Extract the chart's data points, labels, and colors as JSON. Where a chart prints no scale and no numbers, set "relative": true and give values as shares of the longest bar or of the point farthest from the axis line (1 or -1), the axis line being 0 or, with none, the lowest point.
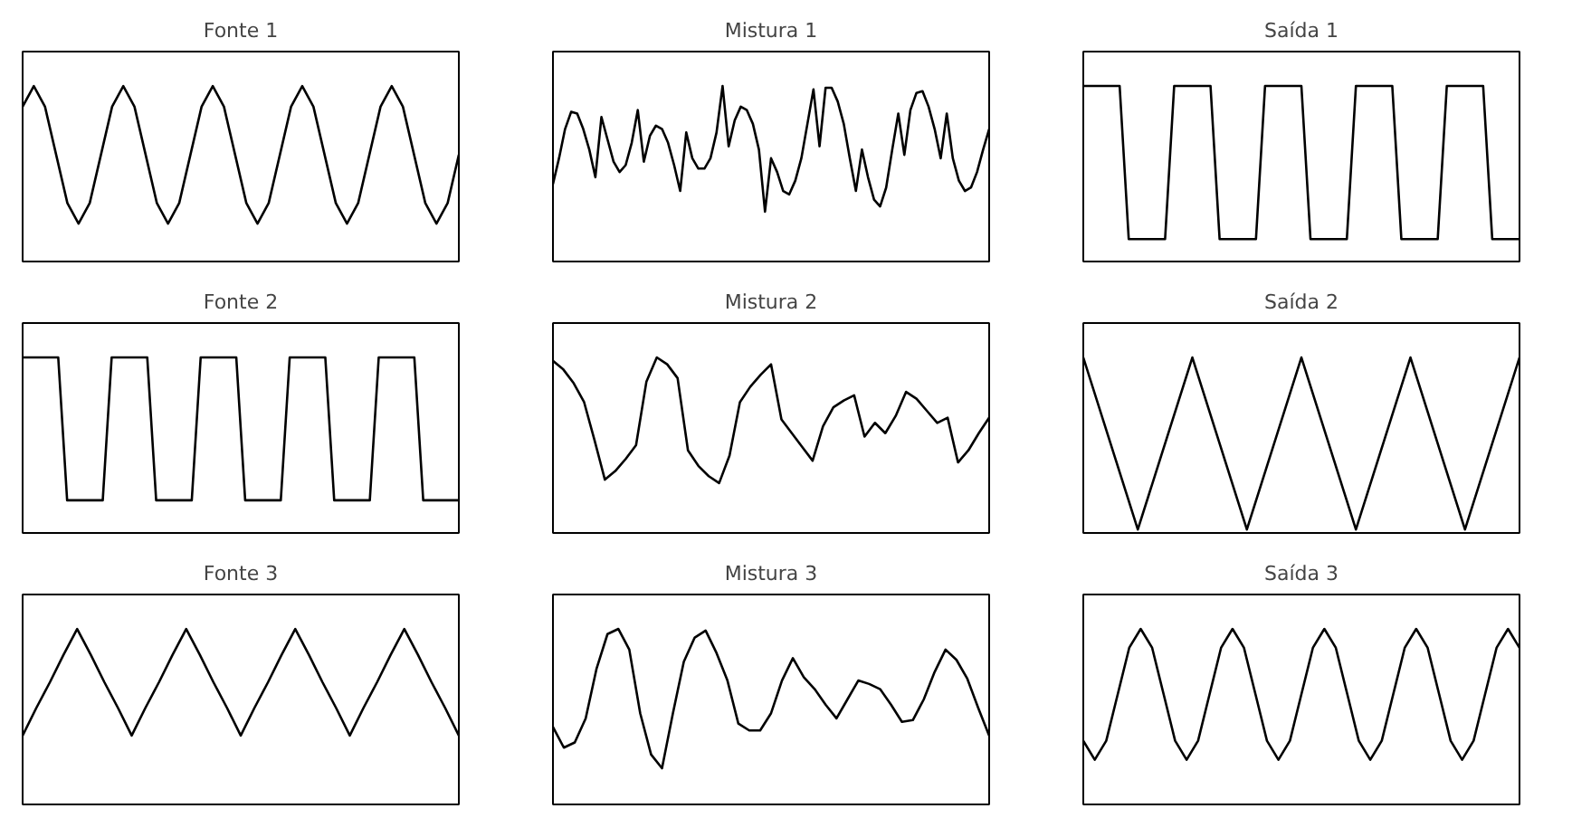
{
  "chart_data": [
    {
      "type": "line",
      "title": "Fonte 1",
      "relative": true,
      "tick_labels": false,
      "categories": [
        null,
        null,
        null,
        null,
        null,
        null,
        null,
        null,
        null,
        null,
        null,
        null,
        null,
        null,
        null,
        null,
        null,
        null,
        null,
        null,
        null,
        null,
        null,
        null,
        null,
        null,
        null,
        null,
        null,
        null,
        null,
        null,
        null,
        null,
        null,
        null,
        null,
        null,
        null,
        null
      ],
      "series": [
        {
          "color": "#000000",
          "values": [
            0.88,
            1,
            0.88,
            0.6,
            0.32,
            0.2,
            0.32,
            0.6,
            0.88,
            1,
            0.88,
            0.6,
            0.32,
            0.2,
            0.32,
            0.6,
            0.88,
            1,
            0.88,
            0.6,
            0.32,
            0.2,
            0.32,
            0.6,
            0.88,
            1,
            0.88,
            0.6,
            0.32,
            0.2,
            0.32,
            0.6,
            0.88,
            1,
            0.88,
            0.6,
            0.32,
            0.2,
            0.32,
            0.6
          ]
        }
      ]
    },
    {
      "type": "line",
      "title": "Mistura 1",
      "relative": true,
      "tick_labels": false,
      "categories": [
        null,
        null,
        null,
        null,
        null,
        null,
        null,
        null,
        null,
        null,
        null,
        null,
        null,
        null,
        null,
        null,
        null,
        null,
        null,
        null,
        null,
        null,
        null,
        null,
        null,
        null,
        null,
        null,
        null,
        null,
        null,
        null,
        null,
        null,
        null,
        null,
        null,
        null,
        null,
        null,
        null,
        null,
        null,
        null,
        null,
        null,
        null,
        null,
        null,
        null,
        null,
        null,
        null,
        null,
        null,
        null,
        null,
        null,
        null,
        null,
        null,
        null,
        null,
        null,
        null,
        null,
        null,
        null,
        null,
        null,
        null,
        null,
        null
      ],
      "series": [
        {
          "color": "#000000",
          "values": [
            0.43,
            0.58,
            0.75,
            0.85,
            0.84,
            0.75,
            0.63,
            0.47,
            0.82,
            0.69,
            0.56,
            0.5,
            0.54,
            0.67,
            0.86,
            0.56,
            0.71,
            0.77,
            0.75,
            0.67,
            0.54,
            0.39,
            0.73,
            0.58,
            0.52,
            0.52,
            0.58,
            0.73,
            1,
            0.65,
            0.8,
            0.88,
            0.86,
            0.78,
            0.63,
            0.27,
            0.58,
            0.5,
            0.39,
            0.37,
            0.45,
            0.58,
            0.78,
            0.98,
            0.65,
            0.99,
            0.99,
            0.91,
            0.78,
            0.58,
            0.39,
            0.63,
            0.47,
            0.34,
            0.3,
            0.41,
            0.63,
            0.84,
            0.6,
            0.86,
            0.96,
            0.97,
            0.88,
            0.75,
            0.58,
            0.84,
            0.58,
            0.45,
            0.39,
            0.41,
            0.5,
            0.63,
            0.75
          ]
        }
      ]
    },
    {
      "type": "line",
      "title": "Saída 1",
      "relative": true,
      "tick_labels": false,
      "categories": [
        null,
        null,
        null,
        null,
        null,
        null,
        null,
        null,
        null,
        null,
        null,
        null,
        null,
        null,
        null,
        null,
        null,
        null,
        null,
        null,
        null,
        null,
        null,
        null,
        null,
        null,
        null,
        null,
        null,
        null,
        null,
        null,
        null,
        null,
        null,
        null,
        null,
        null,
        null,
        null,
        null,
        null,
        null,
        null,
        null,
        null,
        null,
        null,
        null
      ],
      "series": [
        {
          "color": "#000000",
          "values": [
            1,
            1,
            1,
            1,
            1,
            0.11,
            0.11,
            0.11,
            0.11,
            0.11,
            1,
            1,
            1,
            1,
            1,
            0.11,
            0.11,
            0.11,
            0.11,
            0.11,
            1,
            1,
            1,
            1,
            1,
            0.11,
            0.11,
            0.11,
            0.11,
            0.11,
            1,
            1,
            1,
            1,
            1,
            0.11,
            0.11,
            0.11,
            0.11,
            0.11,
            1,
            1,
            1,
            1,
            1,
            0.11,
            0.11,
            0.11,
            0.11
          ]
        }
      ]
    },
    {
      "type": "line",
      "title": "Fonte 2",
      "relative": true,
      "tick_labels": false,
      "categories": [
        null,
        null,
        null,
        null,
        null,
        null,
        null,
        null,
        null,
        null,
        null,
        null,
        null,
        null,
        null,
        null,
        null,
        null,
        null,
        null,
        null,
        null,
        null,
        null,
        null,
        null,
        null,
        null,
        null,
        null,
        null,
        null,
        null,
        null,
        null,
        null,
        null,
        null,
        null,
        null,
        null,
        null,
        null,
        null,
        null,
        null,
        null,
        null,
        null,
        null
      ],
      "series": [
        {
          "color": "#000000",
          "values": [
            1,
            1,
            1,
            1,
            1,
            0.17,
            0.17,
            0.17,
            0.17,
            0.17,
            1,
            1,
            1,
            1,
            1,
            0.17,
            0.17,
            0.17,
            0.17,
            0.17,
            1,
            1,
            1,
            1,
            1,
            0.17,
            0.17,
            0.17,
            0.17,
            0.17,
            1,
            1,
            1,
            1,
            1,
            0.17,
            0.17,
            0.17,
            0.17,
            0.17,
            1,
            1,
            1,
            1,
            1,
            0.17,
            0.17,
            0.17,
            0.17,
            0.17
          ]
        }
      ]
    },
    {
      "type": "line",
      "title": "Mistura 2",
      "relative": true,
      "tick_labels": false,
      "categories": [
        null,
        null,
        null,
        null,
        null,
        null,
        null,
        null,
        null,
        null,
        null,
        null,
        null,
        null,
        null,
        null,
        null,
        null,
        null,
        null,
        null,
        null,
        null,
        null,
        null,
        null,
        null,
        null,
        null,
        null,
        null,
        null,
        null,
        null,
        null,
        null,
        null,
        null,
        null,
        null,
        null,
        null,
        null
      ],
      "series": [
        {
          "color": "#000000",
          "values": [
            0.98,
            0.93,
            0.85,
            0.74,
            0.52,
            0.29,
            0.34,
            0.41,
            0.49,
            0.86,
            1,
            0.96,
            0.88,
            0.46,
            0.37,
            0.31,
            0.27,
            0.43,
            0.74,
            0.83,
            0.9,
            0.96,
            0.64,
            0.56,
            0.48,
            0.4,
            0.6,
            0.71,
            0.75,
            0.78,
            0.54,
            0.62,
            0.56,
            0.66,
            0.8,
            0.76,
            0.69,
            0.62,
            0.65,
            0.39,
            0.46,
            0.56,
            0.65
          ]
        }
      ]
    },
    {
      "type": "line",
      "title": "Saída 2",
      "relative": true,
      "tick_labels": false,
      "categories": [
        null,
        null,
        null,
        null,
        null,
        null,
        null,
        null,
        null,
        null,
        null,
        null,
        null,
        null,
        null,
        null,
        null
      ],
      "series": [
        {
          "color": "#000000",
          "values": [
            1,
            0.5,
            0,
            0.5,
            1,
            0.5,
            0,
            0.5,
            1,
            0.5,
            0,
            0.5,
            1,
            0.5,
            0,
            0.5,
            1
          ]
        }
      ]
    },
    {
      "type": "line",
      "title": "Fonte 3",
      "relative": true,
      "tick_labels": false,
      "categories": [
        null,
        null,
        null,
        null,
        null,
        null,
        null,
        null,
        null,
        null,
        null,
        null,
        null,
        null,
        null,
        null,
        null,
        null,
        null,
        null,
        null,
        null,
        null,
        null,
        null,
        null,
        null,
        null,
        null,
        null,
        null,
        null,
        null
      ],
      "series": [
        {
          "color": "#000000",
          "values": [
            0.38,
            0.54,
            0.69,
            0.85,
            1,
            0.85,
            0.69,
            0.54,
            0.38,
            0.54,
            0.69,
            0.85,
            1,
            0.85,
            0.69,
            0.54,
            0.38,
            0.54,
            0.69,
            0.85,
            1,
            0.85,
            0.69,
            0.54,
            0.38,
            0.54,
            0.69,
            0.85,
            1,
            0.85,
            0.69,
            0.54,
            0.38
          ]
        }
      ]
    },
    {
      "type": "line",
      "title": "Mistura 3",
      "relative": true,
      "tick_labels": false,
      "categories": [
        null,
        null,
        null,
        null,
        null,
        null,
        null,
        null,
        null,
        null,
        null,
        null,
        null,
        null,
        null,
        null,
        null,
        null,
        null,
        null,
        null,
        null,
        null,
        null,
        null,
        null,
        null,
        null,
        null,
        null,
        null,
        null,
        null,
        null,
        null,
        null,
        null,
        null,
        null,
        null,
        null
      ],
      "series": [
        {
          "color": "#000000",
          "values": [
            0.43,
            0.31,
            0.34,
            0.48,
            0.77,
            0.97,
            1,
            0.88,
            0.51,
            0.27,
            0.19,
            0.51,
            0.81,
            0.95,
            0.99,
            0.86,
            0.7,
            0.45,
            0.41,
            0.41,
            0.51,
            0.7,
            0.83,
            0.72,
            0.65,
            0.56,
            0.48,
            0.59,
            0.7,
            0.68,
            0.65,
            0.56,
            0.46,
            0.47,
            0.59,
            0.75,
            0.88,
            0.82,
            0.71,
            0.54,
            0.38
          ]
        }
      ]
    },
    {
      "type": "line",
      "title": "Saída 3",
      "relative": true,
      "tick_labels": false,
      "categories": [
        null,
        null,
        null,
        null,
        null,
        null,
        null,
        null,
        null,
        null,
        null,
        null,
        null,
        null,
        null,
        null,
        null,
        null,
        null,
        null,
        null,
        null,
        null,
        null,
        null,
        null,
        null,
        null,
        null,
        null,
        null,
        null,
        null,
        null,
        null,
        null,
        null,
        null,
        null
      ],
      "series": [
        {
          "color": "#000000",
          "values": [
            0.35,
            0.24,
            0.35,
            0.62,
            0.89,
            1,
            0.89,
            0.62,
            0.35,
            0.24,
            0.35,
            0.62,
            0.89,
            1,
            0.89,
            0.62,
            0.35,
            0.24,
            0.35,
            0.62,
            0.89,
            1,
            0.89,
            0.62,
            0.35,
            0.24,
            0.35,
            0.62,
            0.89,
            1,
            0.89,
            0.62,
            0.35,
            0.24,
            0.35,
            0.62,
            0.89,
            1,
            0.89
          ]
        }
      ]
    }
  ]
}
